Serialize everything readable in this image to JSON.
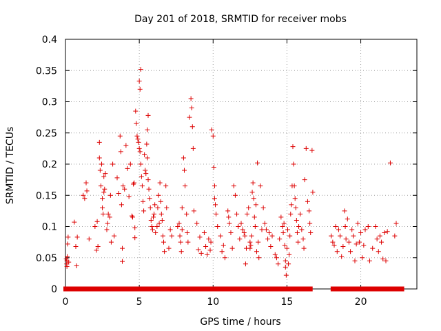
{
  "chart_data": {
    "type": "scatter",
    "title": "Day 201 of 2018, SRMTID for receiver mobs",
    "xlabel": "GPS time / hours",
    "ylabel": "SRMTID / TECUs",
    "xlim": [
      0,
      23.8
    ],
    "ylim": [
      0,
      0.4
    ],
    "x_ticks": [
      0,
      5,
      10,
      15,
      20
    ],
    "y_ticks": [
      0,
      0.05,
      0.1,
      0.15,
      0.2,
      0.25,
      0.3,
      0.35,
      0.4
    ],
    "x_tick_labels": [
      "0",
      "5",
      "10",
      "15",
      "20"
    ],
    "y_tick_labels": [
      "0",
      "0.05",
      "0.1",
      "0.15",
      "0.2",
      "0.25",
      "0.3",
      "0.35",
      "0.4"
    ],
    "grid": true,
    "marker": "+",
    "color": "#dd0000",
    "zero_band": [
      [
        0.0,
        16.6
      ],
      [
        18.1,
        22.8
      ]
    ],
    "series": [
      {
        "name": "SRMTID",
        "points": [
          [
            0.05,
            0.048
          ],
          [
            0.08,
            0.04
          ],
          [
            0.1,
            0.045
          ],
          [
            0.12,
            0.052
          ],
          [
            0.1,
            0.036
          ],
          [
            0.15,
            0.072
          ],
          [
            0.18,
            0.083
          ],
          [
            0.22,
            0.043
          ],
          [
            0.6,
            0.107
          ],
          [
            0.7,
            0.068
          ],
          [
            0.75,
            0.037
          ],
          [
            0.8,
            0.083
          ],
          [
            1.2,
            0.15
          ],
          [
            1.3,
            0.145
          ],
          [
            1.4,
            0.17
          ],
          [
            1.6,
            0.08
          ],
          [
            1.45,
            0.157
          ],
          [
            2.0,
            0.1
          ],
          [
            2.1,
            0.062
          ],
          [
            2.15,
            0.108
          ],
          [
            2.2,
            0.068
          ],
          [
            2.3,
            0.235
          ],
          [
            2.3,
            0.21
          ],
          [
            2.35,
            0.19
          ],
          [
            2.4,
            0.165
          ],
          [
            2.45,
            0.2
          ],
          [
            2.5,
            0.13
          ],
          [
            2.55,
            0.12
          ],
          [
            2.5,
            0.145
          ],
          [
            2.6,
            0.155
          ],
          [
            2.6,
            0.18
          ],
          [
            2.65,
            0.16
          ],
          [
            2.7,
            0.185
          ],
          [
            2.8,
            0.095
          ],
          [
            2.85,
            0.105
          ],
          [
            2.9,
            0.12
          ],
          [
            3.0,
            0.115
          ],
          [
            3.05,
            0.15
          ],
          [
            3.1,
            0.075
          ],
          [
            3.2,
            0.2
          ],
          [
            3.3,
            0.085
          ],
          [
            3.5,
            0.178
          ],
          [
            3.6,
            0.153
          ],
          [
            3.7,
            0.245
          ],
          [
            3.75,
            0.22
          ],
          [
            3.8,
            0.135
          ],
          [
            3.85,
            0.065
          ],
          [
            3.85,
            0.044
          ],
          [
            3.9,
            0.165
          ],
          [
            4.0,
            0.16
          ],
          [
            4.1,
            0.23
          ],
          [
            4.2,
            0.193
          ],
          [
            4.3,
            0.148
          ],
          [
            4.4,
            0.2
          ],
          [
            4.5,
            0.117
          ],
          [
            4.55,
            0.115
          ],
          [
            4.6,
            0.168
          ],
          [
            4.65,
            0.17
          ],
          [
            4.7,
            0.098
          ],
          [
            4.7,
            0.082
          ],
          [
            4.75,
            0.285
          ],
          [
            4.8,
            0.265
          ],
          [
            4.85,
            0.245
          ],
          [
            4.9,
            0.24
          ],
          [
            4.95,
            0.235
          ],
          [
            5.0,
            0.225
          ],
          [
            5.0,
            0.333
          ],
          [
            5.05,
            0.32
          ],
          [
            5.05,
            0.22
          ],
          [
            5.1,
            0.2
          ],
          [
            5.1,
            0.352
          ],
          [
            5.15,
            0.18
          ],
          [
            5.2,
            0.165
          ],
          [
            5.25,
            0.14
          ],
          [
            5.3,
            0.125
          ],
          [
            5.35,
            0.215
          ],
          [
            5.4,
            0.19
          ],
          [
            5.45,
            0.185
          ],
          [
            5.5,
            0.232
          ],
          [
            5.55,
            0.21
          ],
          [
            5.55,
            0.255
          ],
          [
            5.6,
            0.278
          ],
          [
            5.6,
            0.175
          ],
          [
            5.65,
            0.16
          ],
          [
            5.7,
            0.145
          ],
          [
            5.75,
            0.13
          ],
          [
            5.8,
            0.11
          ],
          [
            5.85,
            0.1
          ],
          [
            5.9,
            0.095
          ],
          [
            5.95,
            0.115
          ],
          [
            6.0,
            0.12
          ],
          [
            6.05,
            0.135
          ],
          [
            6.1,
            0.09
          ],
          [
            6.2,
            0.1
          ],
          [
            6.25,
            0.13
          ],
          [
            6.3,
            0.15
          ],
          [
            6.35,
            0.105
          ],
          [
            6.4,
            0.17
          ],
          [
            6.45,
            0.14
          ],
          [
            6.5,
            0.12
          ],
          [
            6.55,
            0.11
          ],
          [
            6.6,
            0.085
          ],
          [
            6.65,
            0.075
          ],
          [
            6.7,
            0.06
          ],
          [
            6.8,
            0.165
          ],
          [
            6.85,
            0.13
          ],
          [
            7.0,
            0.065
          ],
          [
            7.1,
            0.095
          ],
          [
            7.2,
            0.085
          ],
          [
            7.6,
            0.1
          ],
          [
            7.7,
            0.105
          ],
          [
            7.75,
            0.085
          ],
          [
            7.8,
            0.075
          ],
          [
            7.85,
            0.06
          ],
          [
            7.9,
            0.095
          ],
          [
            7.9,
            0.13
          ],
          [
            8.0,
            0.21
          ],
          [
            8.05,
            0.19
          ],
          [
            8.1,
            0.165
          ],
          [
            8.2,
            0.12
          ],
          [
            8.25,
            0.09
          ],
          [
            8.3,
            0.075
          ],
          [
            8.4,
            0.275
          ],
          [
            8.5,
            0.305
          ],
          [
            8.55,
            0.29
          ],
          [
            8.6,
            0.26
          ],
          [
            8.65,
            0.225
          ],
          [
            8.7,
            0.125
          ],
          [
            8.9,
            0.105
          ],
          [
            9.0,
            0.063
          ],
          [
            9.1,
            0.083
          ],
          [
            9.2,
            0.057
          ],
          [
            9.4,
            0.09
          ],
          [
            9.5,
            0.068
          ],
          [
            9.6,
            0.055
          ],
          [
            9.7,
            0.08
          ],
          [
            9.8,
            0.062
          ],
          [
            9.85,
            0.075
          ],
          [
            9.9,
            0.255
          ],
          [
            10.0,
            0.245
          ],
          [
            10.05,
            0.195
          ],
          [
            10.1,
            0.165
          ],
          [
            10.1,
            0.145
          ],
          [
            10.15,
            0.135
          ],
          [
            10.2,
            0.12
          ],
          [
            10.3,
            0.1
          ],
          [
            10.5,
            0.085
          ],
          [
            10.6,
            0.06
          ],
          [
            10.7,
            0.07
          ],
          [
            10.8,
            0.05
          ],
          [
            11.0,
            0.125
          ],
          [
            11.05,
            0.115
          ],
          [
            11.1,
            0.105
          ],
          [
            11.2,
            0.09
          ],
          [
            11.3,
            0.065
          ],
          [
            11.4,
            0.165
          ],
          [
            11.5,
            0.15
          ],
          [
            11.6,
            0.12
          ],
          [
            11.7,
            0.1
          ],
          [
            11.8,
            0.08
          ],
          [
            11.9,
            0.105
          ],
          [
            12.0,
            0.095
          ],
          [
            12.1,
            0.09
          ],
          [
            12.15,
            0.085
          ],
          [
            12.2,
            0.04
          ],
          [
            12.25,
            0.065
          ],
          [
            12.3,
            0.12
          ],
          [
            12.4,
            0.13
          ],
          [
            12.5,
            0.075
          ],
          [
            12.5,
            0.065
          ],
          [
            12.55,
            0.07
          ],
          [
            12.6,
            0.085
          ],
          [
            12.65,
            0.155
          ],
          [
            12.7,
            0.17
          ],
          [
            12.75,
            0.145
          ],
          [
            12.8,
            0.115
          ],
          [
            12.85,
            0.1
          ],
          [
            12.9,
            0.135
          ],
          [
            12.95,
            0.06
          ],
          [
            13.0,
            0.202
          ],
          [
            13.05,
            0.075
          ],
          [
            13.1,
            0.05
          ],
          [
            13.2,
            0.165
          ],
          [
            13.3,
            0.095
          ],
          [
            13.4,
            0.13
          ],
          [
            13.5,
            0.105
          ],
          [
            13.6,
            0.095
          ],
          [
            13.7,
            0.08
          ],
          [
            13.8,
            0.09
          ],
          [
            13.9,
            0.068
          ],
          [
            14.0,
            0.085
          ],
          [
            14.2,
            0.055
          ],
          [
            14.3,
            0.05
          ],
          [
            14.4,
            0.04
          ],
          [
            14.5,
            0.08
          ],
          [
            14.6,
            0.115
          ],
          [
            14.7,
            0.1
          ],
          [
            14.75,
            0.09
          ],
          [
            14.8,
            0.105
          ],
          [
            14.85,
            0.07
          ],
          [
            14.9,
            0.045
          ],
          [
            14.9,
            0.035
          ],
          [
            14.95,
            0.022
          ],
          [
            15.0,
            0.065
          ],
          [
            15.05,
            0.095
          ],
          [
            15.1,
            0.04
          ],
          [
            15.15,
            0.055
          ],
          [
            15.2,
            0.085
          ],
          [
            15.25,
            0.12
          ],
          [
            15.3,
            0.135
          ],
          [
            15.35,
            0.165
          ],
          [
            15.4,
            0.228
          ],
          [
            15.45,
            0.2
          ],
          [
            15.5,
            0.165
          ],
          [
            15.55,
            0.145
          ],
          [
            15.6,
            0.13
          ],
          [
            15.65,
            0.11
          ],
          [
            15.7,
            0.09
          ],
          [
            15.75,
            0.075
          ],
          [
            15.8,
            0.1
          ],
          [
            15.9,
            0.12
          ],
          [
            16.0,
            0.095
          ],
          [
            16.1,
            0.08
          ],
          [
            16.15,
            0.065
          ],
          [
            16.2,
            0.175
          ],
          [
            16.3,
            0.225
          ],
          [
            16.4,
            0.14
          ],
          [
            16.5,
            0.125
          ],
          [
            16.55,
            0.105
          ],
          [
            16.6,
            0.09
          ],
          [
            16.7,
            0.222
          ],
          [
            16.75,
            0.155
          ],
          [
            18.0,
            0.085
          ],
          [
            18.1,
            0.075
          ],
          [
            18.2,
            0.07
          ],
          [
            18.3,
            0.1
          ],
          [
            18.4,
            0.06
          ],
          [
            18.5,
            0.095
          ],
          [
            18.6,
            0.085
          ],
          [
            18.7,
            0.052
          ],
          [
            18.8,
            0.068
          ],
          [
            18.9,
            0.125
          ],
          [
            18.95,
            0.1
          ],
          [
            19.0,
            0.08
          ],
          [
            19.1,
            0.112
          ],
          [
            19.2,
            0.075
          ],
          [
            19.3,
            0.06
          ],
          [
            19.4,
            0.095
          ],
          [
            19.5,
            0.085
          ],
          [
            19.6,
            0.045
          ],
          [
            19.7,
            0.072
          ],
          [
            19.8,
            0.105
          ],
          [
            19.9,
            0.075
          ],
          [
            20.0,
            0.09
          ],
          [
            20.1,
            0.05
          ],
          [
            20.2,
            0.07
          ],
          [
            20.3,
            0.095
          ],
          [
            20.5,
            0.1
          ],
          [
            20.6,
            0.045
          ],
          [
            20.8,
            0.065
          ],
          [
            21.0,
            0.1
          ],
          [
            21.1,
            0.08
          ],
          [
            21.2,
            0.06
          ],
          [
            21.3,
            0.085
          ],
          [
            21.4,
            0.075
          ],
          [
            21.5,
            0.048
          ],
          [
            21.6,
            0.09
          ],
          [
            21.7,
            0.045
          ],
          [
            21.8,
            0.092
          ],
          [
            22.0,
            0.202
          ],
          [
            22.3,
            0.085
          ],
          [
            22.4,
            0.105
          ]
        ]
      }
    ]
  }
}
